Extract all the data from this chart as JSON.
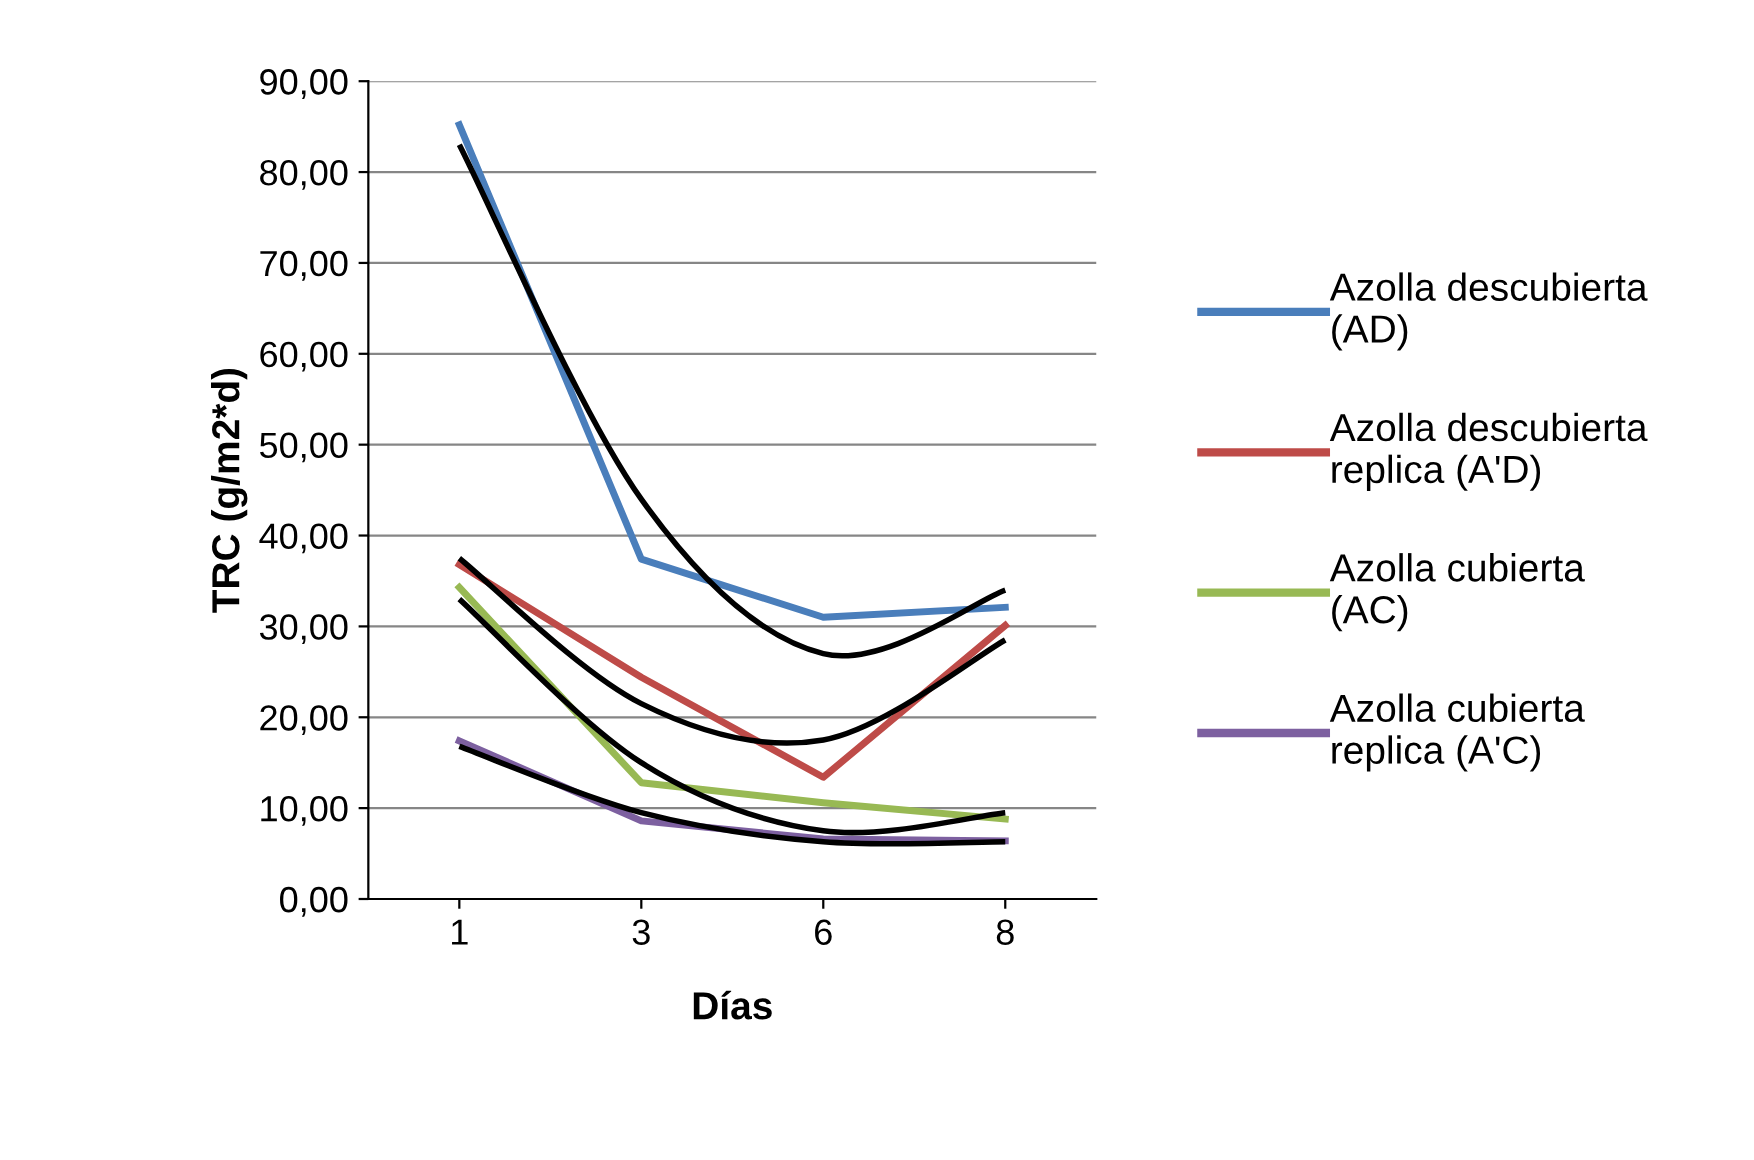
{
  "chart_data": {
    "type": "line",
    "xlabel": "Días",
    "ylabel": "TRC (g/m2*d)",
    "categories": [
      "1",
      "3",
      "6",
      "8"
    ],
    "ylim": [
      0,
      90
    ],
    "yticks": [
      {
        "value": 0,
        "label": "0,00"
      },
      {
        "value": 10,
        "label": "10,00"
      },
      {
        "value": 20,
        "label": "20,00"
      },
      {
        "value": 30,
        "label": "30,00"
      },
      {
        "value": 40,
        "label": "40,00"
      },
      {
        "value": 50,
        "label": "50,00"
      },
      {
        "value": 60,
        "label": "60,00"
      },
      {
        "value": 70,
        "label": "70,00"
      },
      {
        "value": 80,
        "label": "80,00"
      },
      {
        "value": 90,
        "label": "90,00"
      }
    ],
    "grid": "y",
    "legend": "right",
    "marker": "none",
    "line_style": "solid",
    "series": [
      {
        "name": "Azolla descubierta\n(AD)",
        "color": "#4a7ebb",
        "values": [
          85.2,
          37.4,
          31.0,
          32.1
        ]
      },
      {
        "name": "Azolla descubierta\nreplica (A'D)",
        "color": "#be4b48",
        "values": [
          36.8,
          24.4,
          13.4,
          30.1
        ]
      },
      {
        "name": "Azolla cubierta\n(AC)",
        "color": "#98b954",
        "values": [
          34.3,
          12.8,
          10.6,
          8.8
        ]
      },
      {
        "name": "Azolla cubierta\nreplica (A'C)",
        "color": "#7d60a0",
        "values": [
          17.4,
          8.6,
          6.6,
          6.4
        ]
      },
      {
        "type": "line",
        "color": "#000000",
        "values": [
          83,
          44,
          27,
          34
        ]
      },
      {
        "type": "line",
        "color": "#000000",
        "values": [
          33,
          15,
          7.5,
          9.5
        ]
      },
      {
        "type": "line",
        "color": "#000000",
        "values": [
          37.5,
          21.5,
          17.5,
          28.5
        ]
      },
      {
        "type": "line",
        "color": "#000000",
        "values": [
          16.8,
          9.5,
          6.3,
          6.3
        ]
      }
    ]
  }
}
